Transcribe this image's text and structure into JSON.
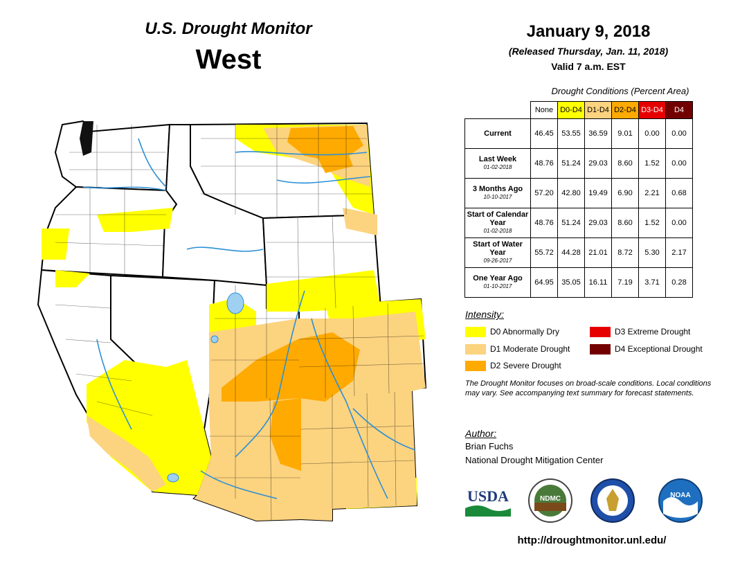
{
  "header": {
    "monitor_title": "U.S. Drought Monitor",
    "region": "West",
    "date": "January 9, 2018",
    "released": "(Released Thursday, Jan. 11, 2018)",
    "valid": "Valid 7 a.m. EST"
  },
  "table": {
    "caption": "Drought Conditions (Percent Area)",
    "columns": [
      "None",
      "D0-D4",
      "D1-D4",
      "D2-D4",
      "D3-D4",
      "D4"
    ],
    "rows": [
      {
        "label": "Current",
        "date": "",
        "values": [
          "46.45",
          "53.55",
          "36.59",
          "9.01",
          "0.00",
          "0.00"
        ]
      },
      {
        "label": "Last Week",
        "date": "01-02-2018",
        "values": [
          "48.76",
          "51.24",
          "29.03",
          "8.60",
          "1.52",
          "0.00"
        ]
      },
      {
        "label": "3 Months Ago",
        "date": "10-10-2017",
        "values": [
          "57.20",
          "42.80",
          "19.49",
          "6.90",
          "2.21",
          "0.68"
        ]
      },
      {
        "label": "Start of Calendar Year",
        "date": "01-02-2018",
        "values": [
          "48.76",
          "51.24",
          "29.03",
          "8.60",
          "1.52",
          "0.00"
        ]
      },
      {
        "label": "Start of Water Year",
        "date": "09-26-2017",
        "values": [
          "55.72",
          "44.28",
          "21.01",
          "8.72",
          "5.30",
          "2.17"
        ]
      },
      {
        "label": "One Year Ago",
        "date": "01-10-2017",
        "values": [
          "64.95",
          "35.05",
          "16.11",
          "7.19",
          "3.71",
          "0.28"
        ]
      }
    ]
  },
  "legend": {
    "title": "Intensity:",
    "items": [
      {
        "label": "D0 Abnormally Dry",
        "color": "#ffff00"
      },
      {
        "label": "D1 Moderate Drought",
        "color": "#fcd37f"
      },
      {
        "label": "D2 Severe Drought",
        "color": "#ffaa00"
      },
      {
        "label": "D3 Extreme Drought",
        "color": "#e60000"
      },
      {
        "label": "D4 Exceptional Drought",
        "color": "#730000"
      }
    ]
  },
  "note": "The Drought Monitor focuses on broad-scale conditions. Local conditions may vary. See accompanying text summary for forecast statements.",
  "author": {
    "title": "Author:",
    "name": "Brian Fuchs",
    "org": "National Drought Mitigation Center"
  },
  "logos": {
    "usda": "USDA",
    "ndmc": "NDMC",
    "noaa": "NOAA"
  },
  "url": "http://droughtmonitor.unl.edu/"
}
